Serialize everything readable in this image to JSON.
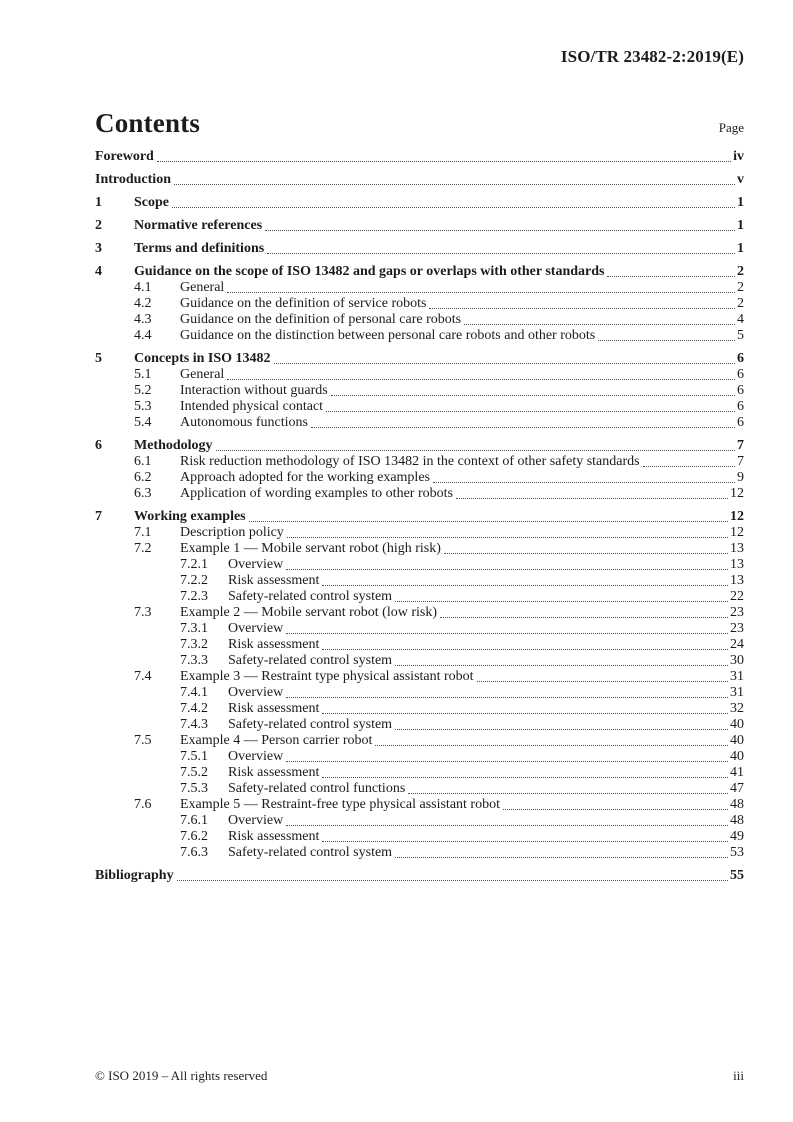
{
  "header": {
    "doc_ref": "ISO/TR 23482-2:2019(E)"
  },
  "contents": {
    "title": "Contents",
    "page_column_label": "Page",
    "entries": [
      {
        "level": 0,
        "num": "",
        "title": "Foreword",
        "page": "iv"
      },
      {
        "level": 0,
        "num": "",
        "title": "Introduction",
        "page": "v"
      },
      {
        "level": 1,
        "num": "1",
        "title": "Scope",
        "page": "1"
      },
      {
        "level": 1,
        "num": "2",
        "title": "Normative references",
        "page": "1"
      },
      {
        "level": 1,
        "num": "3",
        "title": "Terms and definitions",
        "page": "1"
      },
      {
        "level": 1,
        "num": "4",
        "title": "Guidance on the scope of ISO 13482 and gaps or overlaps with other standards",
        "page": "2"
      },
      {
        "level": 2,
        "num": "4.1",
        "title": "General",
        "page": "2"
      },
      {
        "level": 2,
        "num": "4.2",
        "title": "Guidance on the definition of service robots",
        "page": "2"
      },
      {
        "level": 2,
        "num": "4.3",
        "title": "Guidance on the definition of personal care robots",
        "page": "4"
      },
      {
        "level": 2,
        "num": "4.4",
        "title": "Guidance on the distinction between personal care robots and other robots",
        "page": "5"
      },
      {
        "level": 1,
        "num": "5",
        "title": "Concepts in ISO 13482",
        "page": "6"
      },
      {
        "level": 2,
        "num": "5.1",
        "title": "General",
        "page": "6"
      },
      {
        "level": 2,
        "num": "5.2",
        "title": "Interaction without guards",
        "page": "6"
      },
      {
        "level": 2,
        "num": "5.3",
        "title": "Intended physical contact",
        "page": "6"
      },
      {
        "level": 2,
        "num": "5.4",
        "title": "Autonomous functions",
        "page": "6"
      },
      {
        "level": 1,
        "num": "6",
        "title": "Methodology",
        "page": "7"
      },
      {
        "level": 2,
        "num": "6.1",
        "title": "Risk reduction methodology of ISO 13482 in the context of other safety standards",
        "page": "7"
      },
      {
        "level": 2,
        "num": "6.2",
        "title": "Approach adopted for the working examples",
        "page": "9"
      },
      {
        "level": 2,
        "num": "6.3",
        "title": "Application of wording examples to other robots",
        "page": "12"
      },
      {
        "level": 1,
        "num": "7",
        "title": "Working examples",
        "page": "12"
      },
      {
        "level": 2,
        "num": "7.1",
        "title": "Description policy",
        "page": "12"
      },
      {
        "level": 2,
        "num": "7.2",
        "title": "Example 1 — Mobile servant robot (high risk)",
        "page": "13"
      },
      {
        "level": 3,
        "num": "7.2.1",
        "title": "Overview",
        "page": "13"
      },
      {
        "level": 3,
        "num": "7.2.2",
        "title": "Risk assessment",
        "page": "13"
      },
      {
        "level": 3,
        "num": "7.2.3",
        "title": "Safety-related control system",
        "page": "22"
      },
      {
        "level": 2,
        "num": "7.3",
        "title": "Example 2 — Mobile servant robot (low risk)",
        "page": "23"
      },
      {
        "level": 3,
        "num": "7.3.1",
        "title": "Overview",
        "page": "23"
      },
      {
        "level": 3,
        "num": "7.3.2",
        "title": "Risk assessment",
        "page": "24"
      },
      {
        "level": 3,
        "num": "7.3.3",
        "title": "Safety-related control system",
        "page": "30"
      },
      {
        "level": 2,
        "num": "7.4",
        "title": "Example 3 — Restraint type physical assistant robot",
        "page": "31"
      },
      {
        "level": 3,
        "num": "7.4.1",
        "title": "Overview",
        "page": "31"
      },
      {
        "level": 3,
        "num": "7.4.2",
        "title": "Risk assessment",
        "page": "32"
      },
      {
        "level": 3,
        "num": "7.4.3",
        "title": "Safety-related control system",
        "page": "40"
      },
      {
        "level": 2,
        "num": "7.5",
        "title": "Example 4 — Person carrier robot",
        "page": "40"
      },
      {
        "level": 3,
        "num": "7.5.1",
        "title": "Overview",
        "page": "40"
      },
      {
        "level": 3,
        "num": "7.5.2",
        "title": "Risk assessment",
        "page": "41"
      },
      {
        "level": 3,
        "num": "7.5.3",
        "title": "Safety-related control functions",
        "page": "47"
      },
      {
        "level": 2,
        "num": "7.6",
        "title": "Example 5 — Restraint-free type physical assistant robot",
        "page": "48"
      },
      {
        "level": 3,
        "num": "7.6.1",
        "title": "Overview",
        "page": "48"
      },
      {
        "level": 3,
        "num": "7.6.2",
        "title": "Risk assessment",
        "page": "49"
      },
      {
        "level": 3,
        "num": "7.6.3",
        "title": "Safety-related control system",
        "page": "53"
      },
      {
        "level": 0,
        "num": "",
        "title": "Bibliography",
        "page": "55"
      }
    ]
  },
  "footer": {
    "copyright": "© ISO 2019 – All rights reserved",
    "page_number": "iii"
  }
}
